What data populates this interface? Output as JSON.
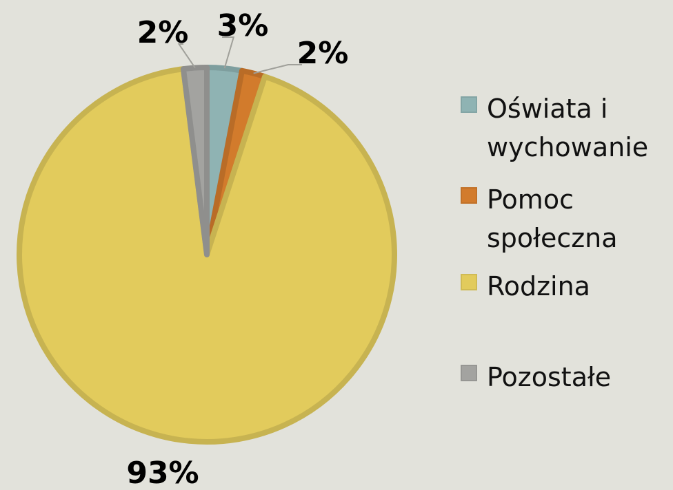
{
  "chart_data": {
    "type": "pie",
    "categories": [
      "Oświata i wychowanie",
      "Pomoc społeczna",
      "Rodzina",
      "Pozostałe"
    ],
    "values": [
      3,
      2,
      93,
      2
    ],
    "value_labels": [
      "3%",
      "2%",
      "93%",
      "2%"
    ],
    "colors": [
      "#8fb3b3",
      "#d27b2c",
      "#e2cb5c",
      "#a3a3a0"
    ],
    "legend": "right"
  }
}
